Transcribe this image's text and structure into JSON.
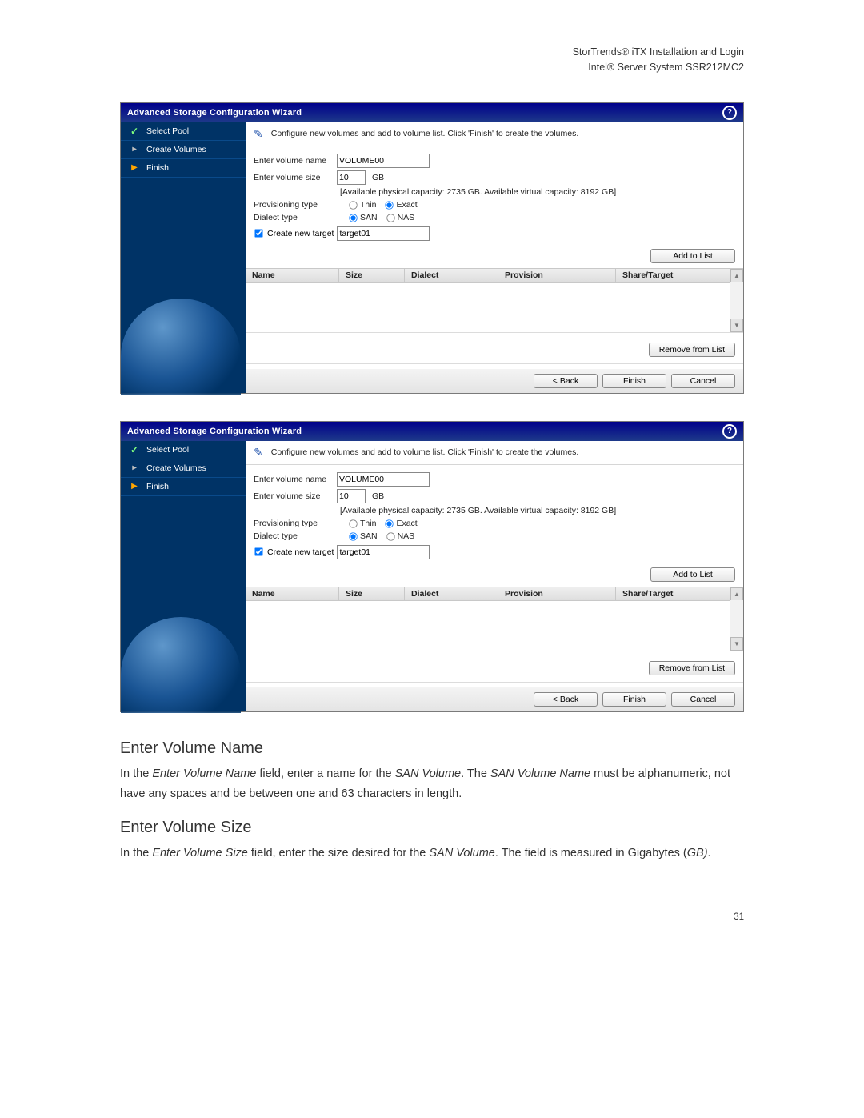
{
  "header": {
    "line1": "StorTrends® iTX Installation and Login",
    "line2": "Intel® Server System SSR212MC2"
  },
  "wizard": {
    "title": "Advanced Storage Configuration Wizard",
    "instruction": "Configure new volumes and add to volume list. Click 'Finish' to create the volumes.",
    "steps": [
      {
        "label": "Select Pool",
        "status": "done"
      },
      {
        "label": "Create Volumes",
        "status": "pending"
      },
      {
        "label": "Finish",
        "status": "current"
      }
    ],
    "fields": {
      "volume_name_label": "Enter volume name",
      "volume_name_value": "VOLUME00",
      "volume_size_label": "Enter volume size",
      "volume_size_value": "10",
      "size_unit": "GB",
      "capacity_text": "[Available physical capacity: 2735 GB. Available virtual capacity: 8192 GB]",
      "prov_label": "Provisioning type",
      "prov_options": {
        "thin": "Thin",
        "exact": "Exact"
      },
      "prov_selected": "exact",
      "dialect_label": "Dialect type",
      "dialect_options": {
        "san": "SAN",
        "nas": "NAS"
      },
      "dialect_selected": "san",
      "create_target_label": "Create new target",
      "create_target_checked": true,
      "target_value": "target01"
    },
    "buttons": {
      "add": "Add to List",
      "remove": "Remove from List",
      "back": "< Back",
      "finish": "Finish",
      "cancel": "Cancel"
    },
    "columns": {
      "name": "Name",
      "size": "Size",
      "dialect": "Dialect",
      "provision": "Provision",
      "share": "Share/Target"
    }
  },
  "doc": {
    "h1": "Enter Volume Name",
    "p1_prefix": "In the ",
    "p1_i1": "Enter Volume Name",
    "p1_mid1": " field, enter a name for the ",
    "p1_i2": "SAN Volume",
    "p1_mid2": ". The ",
    "p1_i3": "SAN Volume Name",
    "p1_tail": " must be alphanumeric, not have any spaces and be between one and 63 characters in length.",
    "h2": "Enter Volume Size",
    "p2_prefix": "In the ",
    "p2_i1": "Enter Volume Size",
    "p2_mid1": " field, enter the size desired for the ",
    "p2_i2": "SAN Volume",
    "p2_mid2": ". The field is measured in Gigabytes (",
    "p2_i3": "GB)",
    "p2_tail": "."
  },
  "page_number": "31"
}
